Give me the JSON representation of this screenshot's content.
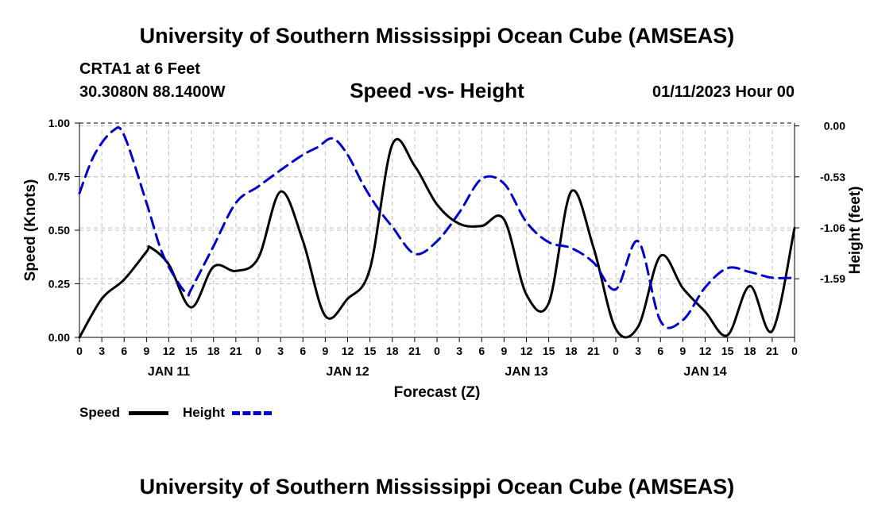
{
  "header": {
    "title": "University of Southern Mississippi Ocean Cube (AMSEAS)",
    "station": "CRTA1 at 6 Feet",
    "coordinates": "30.3080N  88.1400W",
    "date_hour": "01/11/2023 Hour 00"
  },
  "footer": {
    "title": "University of Southern Mississippi Ocean Cube (AMSEAS)"
  },
  "legend": {
    "speed_label": "Speed",
    "height_label": "Height",
    "speed_color": "#000000",
    "height_color": "#0000cc"
  },
  "chart_data": {
    "type": "line",
    "title": "Speed -vs- Height",
    "xlabel": "Forecast (Z)",
    "ylabel": "Speed (Knots)",
    "y2label": "Height (feet)",
    "x_range": [
      0,
      96
    ],
    "x_ticks": [
      0,
      3,
      6,
      9,
      12,
      15,
      18,
      21,
      24,
      27,
      30,
      33,
      36,
      39,
      42,
      45,
      48,
      51,
      54,
      57,
      60,
      63,
      66,
      69,
      72,
      75,
      78,
      81,
      84,
      87,
      90,
      93,
      96
    ],
    "x_tick_labels": [
      "0",
      "3",
      "6",
      "9",
      "12",
      "15",
      "18",
      "21",
      "0",
      "3",
      "6",
      "9",
      "12",
      "15",
      "18",
      "21",
      "0",
      "3",
      "6",
      "9",
      "12",
      "15",
      "18",
      "21",
      "0",
      "3",
      "6",
      "9",
      "12",
      "15",
      "18",
      "21",
      "0"
    ],
    "day_labels": [
      {
        "x": 12,
        "label": "JAN 11"
      },
      {
        "x": 36,
        "label": "JAN 12"
      },
      {
        "x": 60,
        "label": "JAN 13"
      },
      {
        "x": 84,
        "label": "JAN 14"
      }
    ],
    "ylim": [
      0,
      1
    ],
    "y_ticks": [
      0,
      0.25,
      0.5,
      0.75,
      1
    ],
    "y_tick_labels": [
      "0.00",
      "0.25",
      "0.50",
      "0.75",
      "1.00"
    ],
    "y2lim": [
      -2.2,
      0.03
    ],
    "y2_ticks": [
      0,
      -0.53,
      -1.06,
      -1.59
    ],
    "y2_tick_labels": [
      "0.00",
      "-0.53",
      "-1.06",
      "-1.59"
    ],
    "grid": true,
    "series": [
      {
        "name": "Speed",
        "axis": "left",
        "style": "solid",
        "x": [
          0,
          3,
          6,
          9,
          9.5,
          12,
          15,
          18,
          21,
          24,
          27,
          30,
          33,
          36,
          39,
          42,
          45,
          48,
          51,
          54,
          57,
          60,
          63,
          66,
          69,
          72,
          75,
          78,
          81,
          84,
          87,
          90,
          93,
          96
        ],
        "values": [
          0.0,
          0.18,
          0.27,
          0.4,
          0.42,
          0.34,
          0.14,
          0.33,
          0.31,
          0.37,
          0.68,
          0.45,
          0.1,
          0.18,
          0.32,
          0.9,
          0.8,
          0.62,
          0.53,
          0.52,
          0.55,
          0.2,
          0.16,
          0.68,
          0.42,
          0.04,
          0.05,
          0.38,
          0.23,
          0.12,
          0.01,
          0.24,
          0.03,
          0.51
        ]
      },
      {
        "name": "Height",
        "axis": "right",
        "style": "dashed",
        "x": [
          0,
          2,
          4.5,
          6,
          9,
          11,
          13,
          14.5,
          15,
          18,
          21,
          24,
          27,
          30,
          32,
          34,
          36,
          38,
          40,
          42,
          45,
          48,
          51,
          54,
          57,
          60,
          63,
          66,
          69,
          72,
          75,
          78,
          81,
          84,
          87,
          90,
          93,
          96
        ],
        "values": [
          -0.7,
          -0.3,
          -0.05,
          -0.1,
          -0.8,
          -1.3,
          -1.6,
          -1.75,
          -1.7,
          -1.25,
          -0.8,
          -0.63,
          -0.46,
          -0.3,
          -0.22,
          -0.13,
          -0.3,
          -0.6,
          -0.85,
          -1.05,
          -1.33,
          -1.2,
          -0.9,
          -0.55,
          -0.6,
          -1.0,
          -1.21,
          -1.27,
          -1.42,
          -1.7,
          -1.2,
          -2.03,
          -2.02,
          -1.68,
          -1.48,
          -1.52,
          -1.58,
          -1.58
        ]
      }
    ]
  }
}
